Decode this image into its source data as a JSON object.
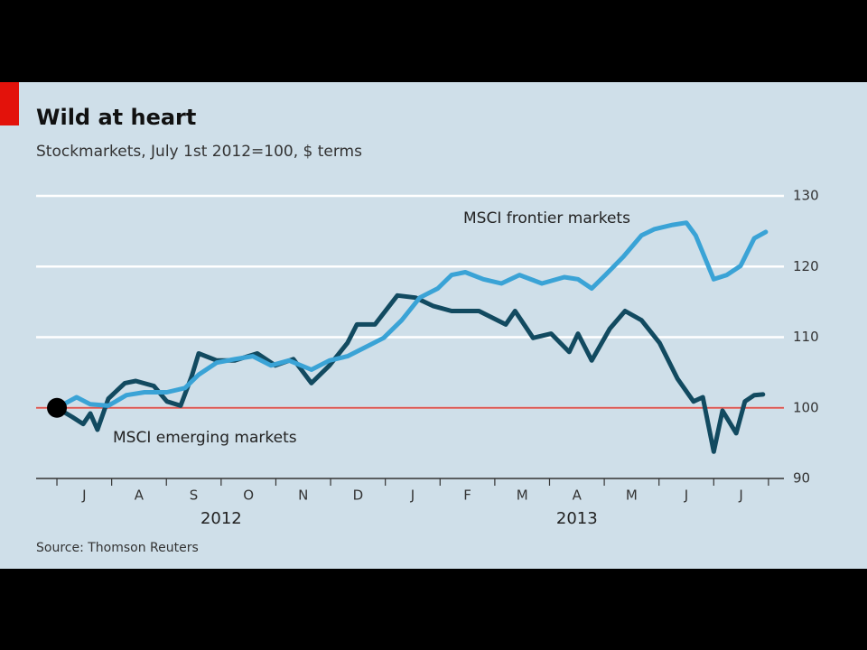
{
  "chart_data": {
    "type": "line",
    "title": "Wild at heart",
    "subtitle": "Stockmarkets, July 1st 2012=100, $ terms",
    "source": "Source: Thomson Reuters",
    "xlim": [
      -0.38,
      13.15
    ],
    "xticks": [
      {
        "value": 0.5,
        "label": "J"
      },
      {
        "value": 1.5,
        "label": "A"
      },
      {
        "value": 2.5,
        "label": "S"
      },
      {
        "value": 3.5,
        "label": "O"
      },
      {
        "value": 4.5,
        "label": "N"
      },
      {
        "value": 5.5,
        "label": "D"
      },
      {
        "value": 6.5,
        "label": "J"
      },
      {
        "value": 7.5,
        "label": "F"
      },
      {
        "value": 8.5,
        "label": "M"
      },
      {
        "value": 9.5,
        "label": "A"
      },
      {
        "value": 10.5,
        "label": "M"
      },
      {
        "value": 11.5,
        "label": "J"
      },
      {
        "value": 12.5,
        "label": "J"
      }
    ],
    "x_groups": [
      {
        "value": 3,
        "label": "2012"
      },
      {
        "value": 9.5,
        "label": "2013"
      }
    ],
    "ylim": [
      90,
      130
    ],
    "yticks": [
      90,
      100,
      110,
      120,
      130
    ],
    "grid": true,
    "reference_line": {
      "value": 100,
      "color": "#d9534f"
    },
    "series": [
      {
        "name": "MSCI emerging markets",
        "color": "#124a60",
        "x": [
          0,
          0.28,
          0.48,
          0.61,
          0.74,
          0.94,
          1.24,
          1.44,
          1.77,
          2.01,
          2.26,
          2.46,
          2.59,
          2.92,
          3.25,
          3.66,
          3.99,
          4.32,
          4.65,
          4.98,
          5.31,
          5.48,
          5.81,
          6.22,
          6.55,
          6.88,
          7.21,
          7.71,
          8.2,
          8.37,
          8.7,
          9.03,
          9.36,
          9.52,
          9.77,
          10.1,
          10.38,
          10.68,
          11.01,
          11.34,
          11.63,
          11.8,
          12.0,
          12.16,
          12.41,
          12.57,
          12.74,
          12.9
        ],
        "values": [
          100,
          98.7,
          97.7,
          99.2,
          96.9,
          101.3,
          103.5,
          103.8,
          103.1,
          100.9,
          100.3,
          104.4,
          107.7,
          106.7,
          106.7,
          107.7,
          106.0,
          106.9,
          103.5,
          106.0,
          109.2,
          111.8,
          111.8,
          115.9,
          115.6,
          114.4,
          113.7,
          113.7,
          111.8,
          113.7,
          109.9,
          110.5,
          107.9,
          110.5,
          106.7,
          111.2,
          113.7,
          112.4,
          109.2,
          104.1,
          100.9,
          101.5,
          93.8,
          99.6,
          96.4,
          100.9,
          101.8,
          101.9
        ]
      },
      {
        "name": "MSCI frontier markets",
        "color": "#3aa3d6",
        "x": [
          0,
          0.36,
          0.61,
          0.94,
          1.27,
          1.6,
          2.01,
          2.34,
          2.59,
          2.92,
          3.25,
          3.58,
          3.91,
          4.24,
          4.65,
          4.98,
          5.31,
          5.64,
          5.97,
          6.3,
          6.63,
          6.96,
          7.21,
          7.46,
          7.79,
          8.12,
          8.45,
          8.86,
          9.27,
          9.52,
          9.77,
          10.02,
          10.35,
          10.68,
          10.92,
          11.25,
          11.5,
          11.67,
          11.83,
          12.0,
          12.24,
          12.49,
          12.74,
          12.95
        ],
        "values": [
          100,
          101.5,
          100.5,
          100.3,
          101.8,
          102.2,
          102.2,
          102.8,
          104.7,
          106.4,
          106.9,
          107.3,
          106.0,
          106.7,
          105.4,
          106.7,
          107.3,
          108.6,
          109.9,
          112.4,
          115.6,
          116.9,
          118.8,
          119.2,
          118.2,
          117.6,
          118.8,
          117.6,
          118.5,
          118.2,
          116.9,
          118.8,
          121.4,
          124.4,
          125.3,
          125.9,
          126.2,
          124.4,
          121.4,
          118.2,
          118.8,
          120.1,
          124.0,
          124.9
        ]
      }
    ]
  }
}
